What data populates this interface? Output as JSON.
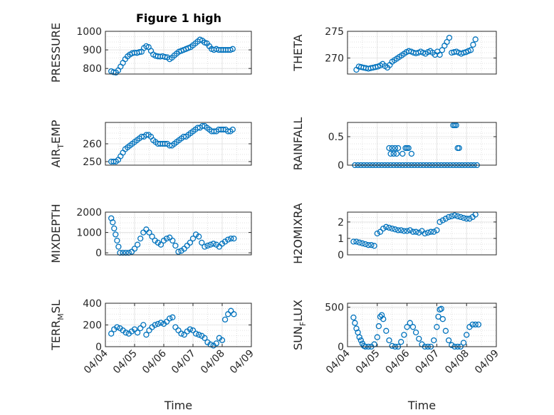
{
  "figure": {
    "title": "Figure 1 high"
  },
  "chart_data": [
    {
      "type": "scatter",
      "ylabel": "PRESSURE",
      "xlim": [
        0,
        5
      ],
      "ylim": [
        770,
        1000
      ],
      "yticks": [
        800,
        900,
        1000
      ],
      "xticks": [],
      "grid": true,
      "x": [
        0.2,
        0.28,
        0.36,
        0.44,
        0.52,
        0.6,
        0.68,
        0.76,
        0.84,
        0.92,
        1.0,
        1.08,
        1.16,
        1.24,
        1.32,
        1.4,
        1.48,
        1.56,
        1.64,
        1.72,
        1.8,
        1.88,
        1.96,
        2.04,
        2.12,
        2.2,
        2.28,
        2.36,
        2.44,
        2.52,
        2.6,
        2.68,
        2.76,
        2.84,
        2.92,
        3.0,
        3.08,
        3.16,
        3.24,
        3.32,
        3.4,
        3.48,
        3.56,
        3.64,
        3.72,
        3.8,
        3.88,
        3.96,
        4.04,
        4.12,
        4.2,
        4.28,
        4.36
      ],
      "y": [
        785,
        780,
        778,
        790,
        810,
        830,
        850,
        865,
        875,
        882,
        885,
        884,
        888,
        890,
        910,
        920,
        915,
        895,
        875,
        868,
        865,
        864,
        866,
        862,
        860,
        850,
        858,
        870,
        880,
        890,
        895,
        900,
        905,
        910,
        915,
        925,
        935,
        945,
        955,
        950,
        940,
        935,
        920,
        905,
        900,
        905,
        900,
        900,
        900,
        900,
        900,
        900,
        905
      ]
    },
    {
      "type": "scatter",
      "ylabel": "THETA",
      "xlim": [
        0,
        5
      ],
      "ylim": [
        267,
        275
      ],
      "yticks": [
        270,
        275
      ],
      "xticks": [],
      "grid": true,
      "x": [
        0.3,
        0.38,
        0.46,
        0.54,
        0.62,
        0.7,
        0.78,
        0.86,
        0.94,
        1.02,
        1.1,
        1.18,
        1.26,
        1.34,
        1.42,
        1.5,
        1.58,
        1.66,
        1.74,
        1.82,
        1.9,
        1.98,
        2.06,
        2.14,
        2.22,
        2.3,
        2.38,
        2.46,
        2.54,
        2.62,
        2.7,
        2.78,
        2.86,
        2.94,
        3.02,
        3.1,
        3.18,
        3.26,
        3.34,
        3.42,
        3.5,
        3.58,
        3.66,
        3.74,
        3.82,
        3.9,
        3.98,
        4.06,
        4.14,
        4.22,
        4.3
      ],
      "y": [
        267.8,
        268.4,
        268.3,
        268.2,
        268.1,
        268.0,
        268.1,
        268.2,
        268.3,
        268.4,
        268.6,
        268.9,
        268.5,
        268.2,
        268.7,
        269.3,
        269.6,
        269.9,
        270.2,
        270.5,
        270.8,
        271.1,
        271.3,
        271.2,
        271.0,
        270.9,
        271.0,
        271.2,
        271.0,
        270.8,
        271.1,
        271.3,
        271.0,
        270.6,
        271.2,
        270.6,
        271.5,
        272.3,
        273.0,
        273.8,
        271.0,
        271.1,
        271.2,
        271.0,
        270.8,
        271.0,
        271.1,
        271.3,
        271.5,
        272.5,
        273.5
      ]
    },
    {
      "type": "scatter",
      "ylabel": "AIR_TEMP",
      "xlim": [
        0,
        5
      ],
      "ylim": [
        248,
        272
      ],
      "yticks": [
        250,
        260
      ],
      "xticks": [],
      "grid": true,
      "x": [
        0.2,
        0.28,
        0.36,
        0.44,
        0.52,
        0.6,
        0.68,
        0.76,
        0.84,
        0.92,
        1.0,
        1.08,
        1.16,
        1.24,
        1.32,
        1.4,
        1.48,
        1.56,
        1.64,
        1.72,
        1.8,
        1.88,
        1.96,
        2.04,
        2.12,
        2.2,
        2.28,
        2.36,
        2.44,
        2.52,
        2.6,
        2.68,
        2.76,
        2.84,
        2.92,
        3.0,
        3.08,
        3.16,
        3.24,
        3.32,
        3.4,
        3.48,
        3.56,
        3.64,
        3.72,
        3.8,
        3.88,
        3.96,
        4.04,
        4.12,
        4.2,
        4.28,
        4.36
      ],
      "y": [
        250,
        250,
        250,
        251,
        253,
        255,
        257,
        258,
        259,
        260,
        261,
        262,
        263,
        264,
        264,
        265,
        265,
        264,
        262,
        261,
        260,
        260,
        260,
        260,
        260,
        259,
        259,
        260,
        261,
        262,
        263,
        264,
        264,
        265,
        266,
        267,
        268,
        269,
        269,
        270,
        270,
        269,
        268,
        267,
        267,
        267,
        268,
        268,
        268,
        268,
        267,
        267,
        268
      ]
    },
    {
      "type": "scatter",
      "ylabel": "RAINFALL",
      "xlim": [
        0,
        5
      ],
      "ylim": [
        0,
        0.75
      ],
      "yticks": [
        0,
        0.5
      ],
      "xticks": [],
      "grid": true,
      "x": [
        0.25,
        0.35,
        0.45,
        0.55,
        0.65,
        0.75,
        0.85,
        0.95,
        1.05,
        1.15,
        1.25,
        1.35,
        1.45,
        1.55,
        1.65,
        1.75,
        1.85,
        1.95,
        2.05,
        2.15,
        2.25,
        2.35,
        2.45,
        2.55,
        2.65,
        2.75,
        2.85,
        2.95,
        3.05,
        3.15,
        3.25,
        3.35,
        3.45,
        3.55,
        3.65,
        3.75,
        3.85,
        3.95,
        4.05,
        4.15,
        4.25,
        4.35,
        1.4,
        1.5,
        1.6,
        1.7,
        1.45,
        1.55,
        1.65,
        1.95,
        2.05,
        2.15,
        1.85,
        2.0,
        3.55,
        3.6,
        3.65,
        3.7,
        3.75
      ],
      "y": [
        0,
        0,
        0,
        0,
        0,
        0,
        0,
        0,
        0,
        0,
        0,
        0,
        0,
        0,
        0,
        0,
        0,
        0,
        0,
        0,
        0,
        0,
        0,
        0,
        0,
        0,
        0,
        0,
        0,
        0,
        0,
        0,
        0,
        0,
        0,
        0,
        0,
        0,
        0,
        0,
        0,
        0,
        0.3,
        0.3,
        0.3,
        0.3,
        0.2,
        0.2,
        0.2,
        0.3,
        0.3,
        0.2,
        0.2,
        0.3,
        0.7,
        0.7,
        0.7,
        0.3,
        0.3
      ]
    },
    {
      "type": "scatter",
      "ylabel": "MIXDEPTH",
      "xlim": [
        0,
        5
      ],
      "ylim": [
        -100,
        2000
      ],
      "yticks": [
        0,
        1000,
        2000
      ],
      "xticks": [],
      "grid": true,
      "x": [
        0.2,
        0.25,
        0.3,
        0.35,
        0.4,
        0.45,
        0.5,
        0.6,
        0.7,
        0.8,
        0.9,
        1.0,
        1.1,
        1.2,
        1.3,
        1.4,
        1.5,
        1.6,
        1.7,
        1.8,
        1.9,
        2.0,
        2.1,
        2.2,
        2.3,
        2.4,
        2.5,
        2.6,
        2.7,
        2.8,
        2.9,
        3.0,
        3.1,
        3.2,
        3.3,
        3.4,
        3.5,
        3.6,
        3.7,
        3.8,
        3.9,
        4.0,
        4.1,
        4.2,
        4.3,
        4.4
      ],
      "y": [
        1700,
        1500,
        1200,
        900,
        600,
        300,
        0,
        0,
        0,
        0,
        50,
        200,
        400,
        700,
        1000,
        1150,
        1000,
        800,
        600,
        500,
        400,
        600,
        700,
        750,
        600,
        350,
        50,
        100,
        200,
        350,
        500,
        700,
        900,
        800,
        500,
        300,
        350,
        400,
        450,
        400,
        300,
        450,
        550,
        650,
        700,
        700
      ]
    },
    {
      "type": "scatter",
      "ylabel": "H2OMIXRA",
      "xlim": [
        0,
        5
      ],
      "ylim": [
        0,
        2.6
      ],
      "yticks": [
        0,
        1,
        2
      ],
      "xticks": [],
      "grid": true,
      "x": [
        0.2,
        0.3,
        0.4,
        0.5,
        0.6,
        0.7,
        0.8,
        0.9,
        1.0,
        1.1,
        1.2,
        1.3,
        1.4,
        1.5,
        1.6,
        1.7,
        1.8,
        1.9,
        2.0,
        2.1,
        2.2,
        2.3,
        2.4,
        2.5,
        2.6,
        2.7,
        2.8,
        2.9,
        3.0,
        3.1,
        3.2,
        3.3,
        3.4,
        3.5,
        3.6,
        3.7,
        3.8,
        3.9,
        4.0,
        4.1,
        4.2,
        4.3
      ],
      "y": [
        0.8,
        0.8,
        0.75,
        0.7,
        0.65,
        0.6,
        0.6,
        0.55,
        1.3,
        1.4,
        1.6,
        1.7,
        1.65,
        1.6,
        1.55,
        1.5,
        1.5,
        1.45,
        1.45,
        1.5,
        1.4,
        1.4,
        1.35,
        1.45,
        1.3,
        1.35,
        1.4,
        1.4,
        1.5,
        2.0,
        2.1,
        2.2,
        2.3,
        2.35,
        2.4,
        2.35,
        2.3,
        2.25,
        2.2,
        2.2,
        2.3,
        2.45
      ]
    },
    {
      "type": "scatter",
      "ylabel": "TERR_MSL",
      "xlim": [
        0,
        5
      ],
      "ylim": [
        0,
        400
      ],
      "yticks": [
        0,
        200,
        400
      ],
      "xticks": [
        0,
        1,
        2,
        3,
        4,
        5
      ],
      "xticklabels": [
        "04/04",
        "04/05",
        "04/06",
        "04/07",
        "04/08",
        "04/09"
      ],
      "xlabel": "Time",
      "grid": true,
      "x": [
        0.2,
        0.3,
        0.4,
        0.5,
        0.6,
        0.7,
        0.8,
        0.9,
        1.0,
        1.1,
        1.2,
        1.3,
        1.4,
        1.5,
        1.6,
        1.7,
        1.8,
        1.9,
        2.0,
        2.1,
        2.2,
        2.3,
        2.4,
        2.5,
        2.6,
        2.7,
        2.8,
        2.9,
        3.0,
        3.1,
        3.2,
        3.3,
        3.4,
        3.5,
        3.6,
        3.7,
        3.8,
        3.9,
        4.0,
        4.1,
        4.2,
        4.3,
        4.4
      ],
      "y": [
        120,
        160,
        180,
        170,
        150,
        130,
        120,
        140,
        160,
        130,
        170,
        200,
        110,
        150,
        180,
        200,
        210,
        220,
        210,
        230,
        260,
        270,
        180,
        150,
        120,
        110,
        140,
        160,
        150,
        120,
        110,
        100,
        80,
        40,
        20,
        10,
        30,
        80,
        60,
        250,
        300,
        330,
        300
      ]
    },
    {
      "type": "scatter",
      "ylabel": "SUN_FLUX",
      "xlim": [
        0,
        5
      ],
      "ylim": [
        0,
        550
      ],
      "yticks": [
        0,
        500
      ],
      "xticks": [
        0,
        1,
        2,
        3,
        4,
        5
      ],
      "xticklabels": [
        "04/04",
        "04/05",
        "04/06",
        "04/07",
        "04/08",
        "04/09"
      ],
      "xlabel": "Time",
      "grid": true,
      "x": [
        0.2,
        0.25,
        0.3,
        0.35,
        0.4,
        0.45,
        0.5,
        0.55,
        0.6,
        0.7,
        0.8,
        0.9,
        1.0,
        1.05,
        1.1,
        1.15,
        1.2,
        1.3,
        1.4,
        1.5,
        1.6,
        1.7,
        1.8,
        1.9,
        2.0,
        2.1,
        2.2,
        2.3,
        2.4,
        2.5,
        2.6,
        2.7,
        2.8,
        2.9,
        3.0,
        3.05,
        3.1,
        3.15,
        3.2,
        3.3,
        3.4,
        3.5,
        3.6,
        3.7,
        3.8,
        3.9,
        4.0,
        4.1,
        4.2,
        4.3,
        4.4
      ],
      "y": [
        370,
        300,
        230,
        180,
        120,
        80,
        40,
        10,
        0,
        0,
        0,
        30,
        120,
        260,
        380,
        400,
        350,
        200,
        80,
        10,
        0,
        0,
        60,
        150,
        250,
        300,
        250,
        180,
        100,
        30,
        0,
        0,
        0,
        80,
        250,
        380,
        470,
        480,
        350,
        200,
        80,
        20,
        0,
        0,
        0,
        50,
        150,
        250,
        280,
        280,
        280
      ]
    }
  ]
}
